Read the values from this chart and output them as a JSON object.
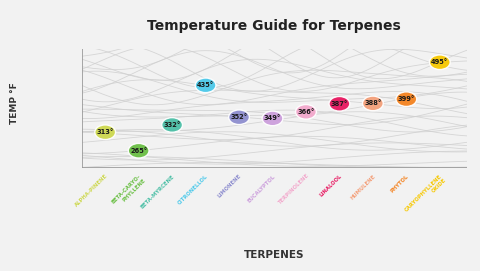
{
  "title": "Temperature Guide for Terpenes",
  "xlabel": "TERPENES",
  "ylabel": "TEMP °F",
  "background_color": "#f2f2f2",
  "terpenes": [
    {
      "name": "ALPHA-PINENE",
      "temp": 313,
      "x": 1,
      "color": "#cdd84f",
      "label_color": "#cdd84f"
    },
    {
      "name": "BETA-CARYO-\nPHYLLENE",
      "temp": 265,
      "x": 2,
      "color": "#6abf44",
      "label_color": "#6abf44"
    },
    {
      "name": "BETA-MYRCENE",
      "temp": 332,
      "x": 3,
      "color": "#4bbfa6",
      "label_color": "#4bbfa6"
    },
    {
      "name": "CITRONELLOL",
      "temp": 435,
      "x": 4,
      "color": "#4cc9ea",
      "label_color": "#4cc9ea"
    },
    {
      "name": "LIMONENE",
      "temp": 352,
      "x": 5,
      "color": "#8e8ecf",
      "label_color": "#8e8ecf"
    },
    {
      "name": "EUCALYPTOL",
      "temp": 349,
      "x": 6,
      "color": "#cc9fdc",
      "label_color": "#cc9fdc"
    },
    {
      "name": "TERPINOLENE",
      "temp": 366,
      "x": 7,
      "color": "#f3a8cc",
      "label_color": "#f3a8cc"
    },
    {
      "name": "LINALOOL",
      "temp": 387,
      "x": 8,
      "color": "#e81760",
      "label_color": "#e81760"
    },
    {
      "name": "HUMULENE",
      "temp": 388,
      "x": 9,
      "color": "#f4a07a",
      "label_color": "#f4a07a"
    },
    {
      "name": "PHYTOL",
      "temp": 399,
      "x": 10,
      "color": "#f4821f",
      "label_color": "#f4821f"
    },
    {
      "name": "CARYOPHYLLENE\nOXIDE",
      "temp": 495,
      "x": 11,
      "color": "#f7c800",
      "label_color": "#f7c800"
    }
  ]
}
